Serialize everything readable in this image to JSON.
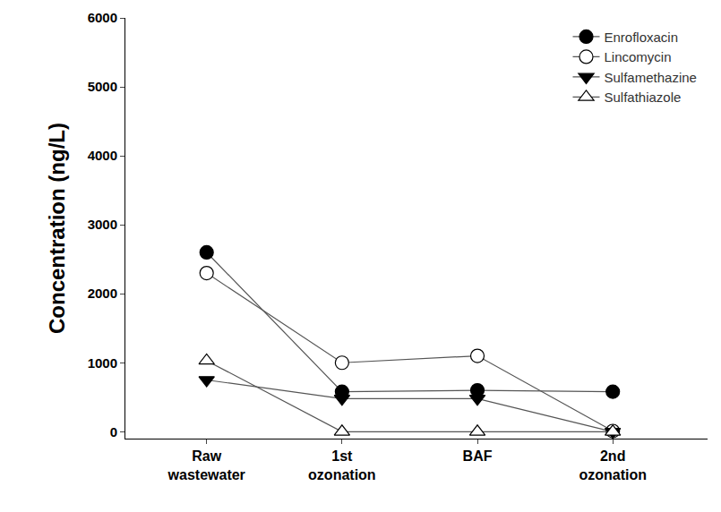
{
  "chart_data": {
    "type": "line",
    "y_label": "Concentration (ng/L)",
    "categories": [
      "Raw wastewater",
      "1st ozonation",
      "BAF",
      "2nd ozonation"
    ],
    "series": [
      {
        "name": "Enrofloxacin",
        "color": "#000000",
        "marker": "circle",
        "values": [
          2600,
          580,
          600,
          580
        ]
      },
      {
        "name": "Lincomycin",
        "color": "#000000",
        "marker": "circle-open",
        "values": [
          2300,
          1000,
          1100,
          10
        ]
      },
      {
        "name": "Sulfamethazine",
        "color": "#000000",
        "marker": "triangle-down",
        "values": [
          750,
          480,
          480,
          0
        ]
      },
      {
        "name": "Sulfathiazole",
        "color": "#000000",
        "marker": "triangle-up-open",
        "values": [
          1030,
          0,
          0,
          0
        ]
      }
    ],
    "ylim": [
      -100,
      6000
    ],
    "yticks": [
      0,
      1000,
      2000,
      3000,
      4000,
      5000,
      6000
    ],
    "grid": false,
    "legend": "upper right"
  }
}
